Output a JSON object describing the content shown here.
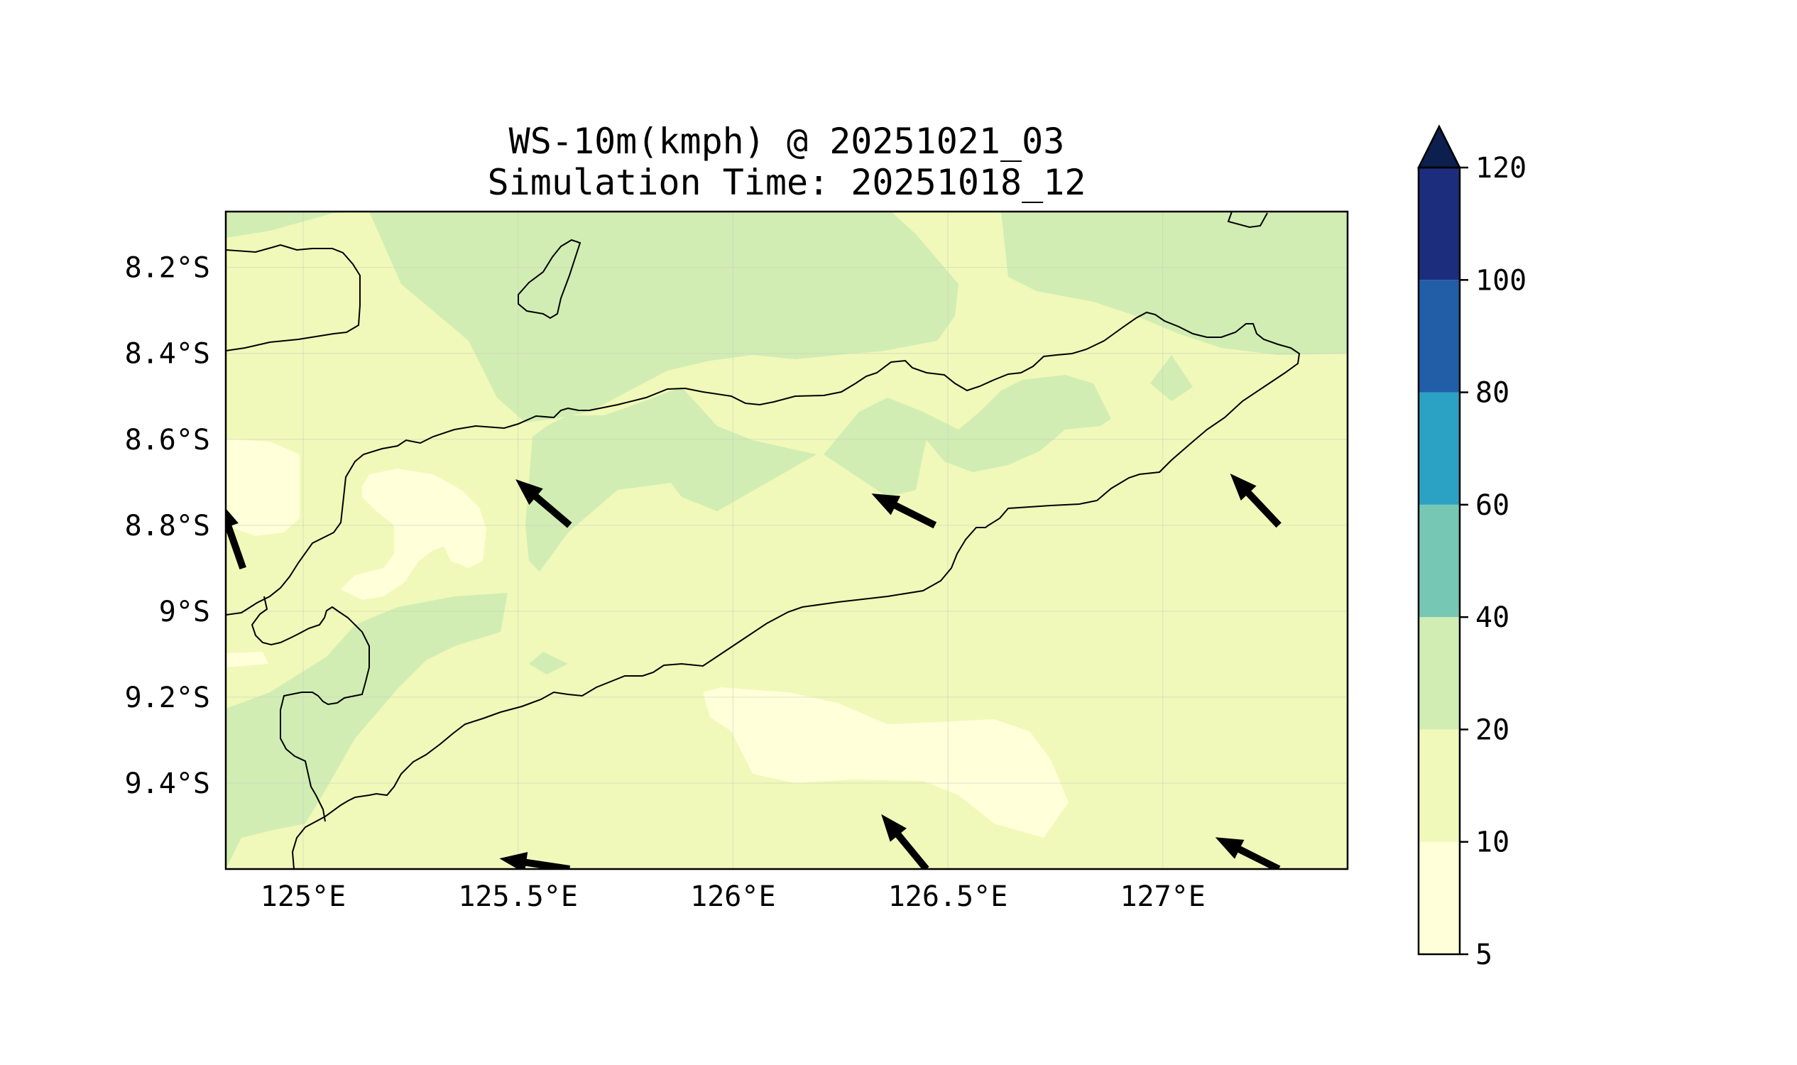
{
  "title": {
    "line1": "WS-10m(kmph) @ 20251021_03",
    "line2": "Simulation Time: 20251018_12"
  },
  "map": {
    "lon_range": [
      124.82,
      127.43
    ],
    "lat_range": [
      -9.6,
      -8.07
    ],
    "lon_ticks": [
      {
        "value": 125.0,
        "label": "125°E"
      },
      {
        "value": 125.5,
        "label": "125.5°E"
      },
      {
        "value": 126.0,
        "label": "126°E"
      },
      {
        "value": 126.5,
        "label": "126.5°E"
      },
      {
        "value": 127.0,
        "label": "127°E"
      }
    ],
    "lat_ticks": [
      {
        "value": -8.2,
        "label": "8.2°S"
      },
      {
        "value": -8.4,
        "label": "8.4°S"
      },
      {
        "value": -8.6,
        "label": "8.6°S"
      },
      {
        "value": -8.8,
        "label": "8.8°S"
      },
      {
        "value": -9.0,
        "label": "9°S"
      },
      {
        "value": -9.2,
        "label": "9.2°S"
      },
      {
        "value": -9.4,
        "label": "9.4°S"
      }
    ],
    "grid": true,
    "background_level_color": "#f0f9b9",
    "wind_vectors": [
      {
        "lon": 125.62,
        "lat": -8.8,
        "u": -1.0,
        "v": 0.85
      },
      {
        "lon": 126.47,
        "lat": -8.8,
        "u": -1.0,
        "v": 0.5
      },
      {
        "lon": 127.27,
        "lat": -8.8,
        "u": -0.8,
        "v": 0.85
      },
      {
        "lon": 124.86,
        "lat": -8.9,
        "u": -0.35,
        "v": 1.0
      },
      {
        "lon": 125.62,
        "lat": -9.6,
        "u": -1.0,
        "v": 0.15
      },
      {
        "lon": 126.45,
        "lat": -9.6,
        "u": -0.7,
        "v": 0.85
      },
      {
        "lon": 127.27,
        "lat": -9.6,
        "u": -1.0,
        "v": 0.5
      }
    ]
  },
  "colorbar": {
    "extend": "max",
    "extend_color": "#0c1f4e",
    "levels": [
      {
        "from": 5,
        "to": 10,
        "color": "#ffffd9"
      },
      {
        "from": 10,
        "to": 20,
        "color": "#f0f9b9"
      },
      {
        "from": 20,
        "to": 40,
        "color": "#d1edb3"
      },
      {
        "from": 40,
        "to": 60,
        "color": "#76c8b4"
      },
      {
        "from": 60,
        "to": 80,
        "color": "#2ba2c3"
      },
      {
        "from": 80,
        "to": 100,
        "color": "#225ea8"
      },
      {
        "from": 100,
        "to": 120,
        "color": "#1c2d7e"
      }
    ],
    "tick_labels": [
      "5",
      "10",
      "20",
      "40",
      "60",
      "80",
      "100",
      "120"
    ]
  }
}
